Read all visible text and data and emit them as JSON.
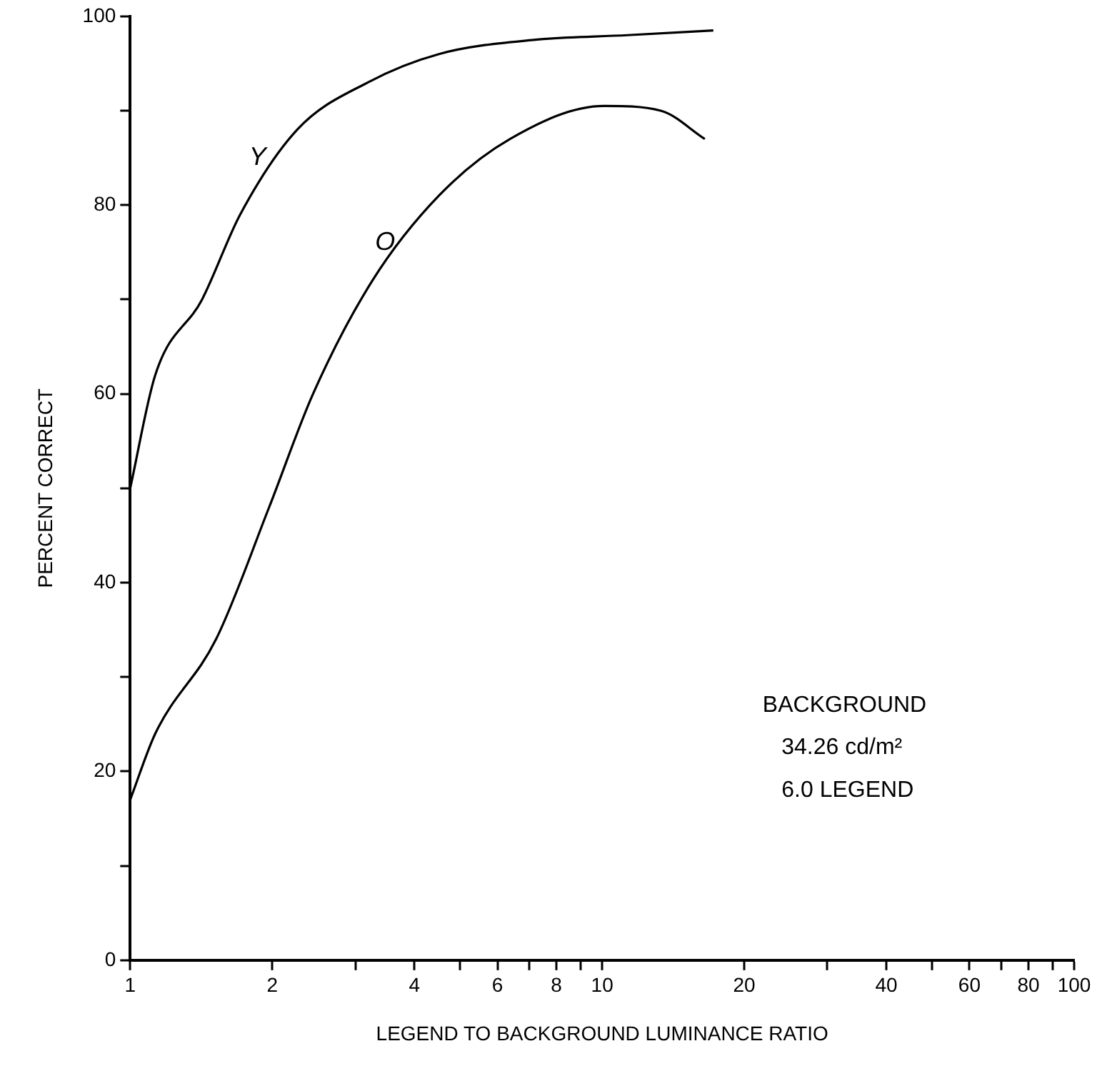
{
  "chart_data": {
    "type": "line",
    "xlabel": "LEGEND TO BACKGROUND LUMINANCE RATIO",
    "ylabel": "PERCENT CORRECT",
    "log": "x",
    "xlim": [
      1,
      100
    ],
    "xticks": [
      1,
      2,
      {
        "value": 3,
        "label": null
      },
      4,
      {
        "value": 5,
        "label": null
      },
      6,
      {
        "value": 7,
        "label": null
      },
      8,
      {
        "value": 9,
        "label": null
      },
      10,
      20,
      {
        "value": 30,
        "label": null
      },
      40,
      {
        "value": 50,
        "label": null
      },
      60,
      {
        "value": 70,
        "label": null
      },
      80,
      {
        "value": 90,
        "label": null
      },
      100
    ],
    "ylim": [
      0,
      100
    ],
    "yticks": [
      0,
      {
        "value": 10,
        "label": null
      },
      20,
      {
        "value": 30,
        "label": null
      },
      40,
      {
        "value": 50,
        "label": null
      },
      60,
      {
        "value": 70,
        "label": null
      },
      80,
      {
        "value": 90,
        "label": null
      },
      100
    ],
    "grid": false,
    "legend": false,
    "marker": "none",
    "line_style": "solid",
    "series": [
      {
        "color": "#000000",
        "x": [
          1,
          1.13,
          1.42,
          1.71,
          2.26,
          3.19,
          4.51,
          7.16,
          11.3,
          17.2
        ],
        "values": [
          50,
          62,
          70,
          79,
          88,
          93,
          96,
          97.5,
          98,
          98.5
        ]
      },
      {
        "color": "#000000",
        "x": [
          1,
          1.13,
          1.52,
          1.97,
          2.44,
          3.26,
          4.51,
          6.38,
          10.1,
          13.3,
          16.5
        ],
        "values": [
          17,
          24,
          34,
          48,
          60,
          72,
          81,
          87,
          90.5,
          90,
          87
        ]
      }
    ],
    "annotations": [
      "Y",
      "O",
      "BACKGROUND",
      "34.26 cd/m²",
      "6.0 LEGEND"
    ]
  }
}
